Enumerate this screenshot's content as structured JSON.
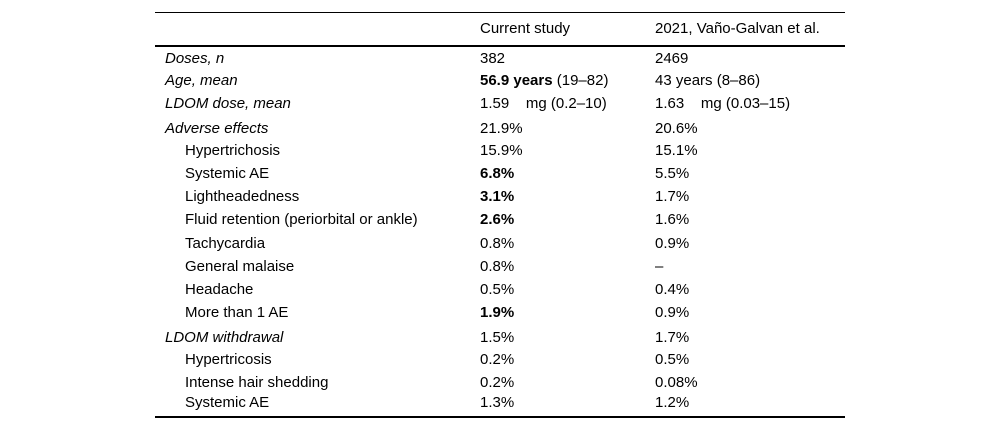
{
  "page": {
    "background": "#ffffff",
    "text_color": "#000000",
    "rule_color": "#000000"
  },
  "table": {
    "columns": [
      {
        "label": ""
      },
      {
        "label": "Current study"
      },
      {
        "label": "2021, Vaño-Galvan et al."
      }
    ],
    "rows": [
      {
        "label": "Doses, n",
        "italic": true,
        "indent": false,
        "space_before": false,
        "current": [
          {
            "t": "382",
            "b": false
          }
        ],
        "comparison": [
          {
            "t": "2469",
            "b": false
          }
        ]
      },
      {
        "label": "Age, mean",
        "italic": true,
        "indent": false,
        "space_before": false,
        "current": [
          {
            "t": "56.9 years",
            "b": true
          },
          {
            "t": " (19–82)",
            "b": false
          }
        ],
        "comparison": [
          {
            "t": "43 years (8–86)",
            "b": false
          }
        ]
      },
      {
        "label": "LDOM dose, mean",
        "italic": true,
        "indent": false,
        "space_before": false,
        "current": [
          {
            "t": "1.59    mg (0.2–10)",
            "b": false
          }
        ],
        "comparison": [
          {
            "t": "1.63    mg (0.03–15)",
            "b": false
          }
        ]
      },
      {
        "label": "Adverse effects",
        "italic": true,
        "indent": false,
        "space_before": true,
        "current": [
          {
            "t": "21.9%",
            "b": false
          }
        ],
        "comparison": [
          {
            "t": "20.6%",
            "b": false
          }
        ]
      },
      {
        "label": "Hypertrichosis",
        "italic": false,
        "indent": true,
        "space_before": false,
        "current": [
          {
            "t": "15.9%",
            "b": false
          }
        ],
        "comparison": [
          {
            "t": "15.1%",
            "b": false
          }
        ]
      },
      {
        "label": "Systemic AE",
        "italic": false,
        "indent": true,
        "space_before": false,
        "current": [
          {
            "t": "6.8%",
            "b": true
          }
        ],
        "comparison": [
          {
            "t": "5.5%",
            "b": false
          }
        ]
      },
      {
        "label": "Lightheadedness",
        "italic": false,
        "indent": true,
        "space_before": false,
        "current": [
          {
            "t": "3.1%",
            "b": true
          }
        ],
        "comparison": [
          {
            "t": "1.7%",
            "b": false
          }
        ]
      },
      {
        "label": "Fluid retention (periorbital or ankle)",
        "italic": false,
        "indent": true,
        "space_before": false,
        "current": [
          {
            "t": "2.6%",
            "b": true
          }
        ],
        "comparison": [
          {
            "t": "1.6%",
            "b": false
          }
        ]
      },
      {
        "label": "Tachycardia",
        "italic": false,
        "indent": true,
        "space_before": false,
        "current": [
          {
            "t": "0.8%",
            "b": false
          }
        ],
        "comparison": [
          {
            "t": "0.9%",
            "b": false
          }
        ]
      },
      {
        "label": "General malaise",
        "italic": false,
        "indent": true,
        "space_before": false,
        "current": [
          {
            "t": "0.8%",
            "b": false
          }
        ],
        "comparison": [
          {
            "t": "–",
            "b": false
          }
        ]
      },
      {
        "label": "Headache",
        "italic": false,
        "indent": true,
        "space_before": false,
        "current": [
          {
            "t": "0.5%",
            "b": false
          }
        ],
        "comparison": [
          {
            "t": "0.4%",
            "b": false
          }
        ]
      },
      {
        "label": "More than 1 AE",
        "italic": false,
        "indent": true,
        "space_before": false,
        "current": [
          {
            "t": "1.9%",
            "b": true
          }
        ],
        "comparison": [
          {
            "t": "0.9%",
            "b": false
          }
        ]
      },
      {
        "label": "LDOM withdrawal",
        "italic": true,
        "indent": false,
        "space_before": true,
        "current": [
          {
            "t": "1.5%",
            "b": false
          }
        ],
        "comparison": [
          {
            "t": "1.7%",
            "b": false
          }
        ]
      },
      {
        "label": "Hypertricosis",
        "italic": false,
        "indent": true,
        "space_before": false,
        "current": [
          {
            "t": "0.2%",
            "b": false
          }
        ],
        "comparison": [
          {
            "t": "0.5%",
            "b": false
          }
        ]
      },
      {
        "label": "Intense hair shedding",
        "italic": false,
        "indent": true,
        "space_before": false,
        "current": [
          {
            "t": "0.2%",
            "b": false
          }
        ],
        "comparison": [
          {
            "t": "0.08%",
            "b": false
          }
        ]
      },
      {
        "label": "Systemic AE",
        "italic": false,
        "indent": true,
        "space_before": false,
        "current": [
          {
            "t": "1.3%",
            "b": false
          }
        ],
        "comparison": [
          {
            "t": "1.2%",
            "b": false
          }
        ]
      }
    ]
  }
}
